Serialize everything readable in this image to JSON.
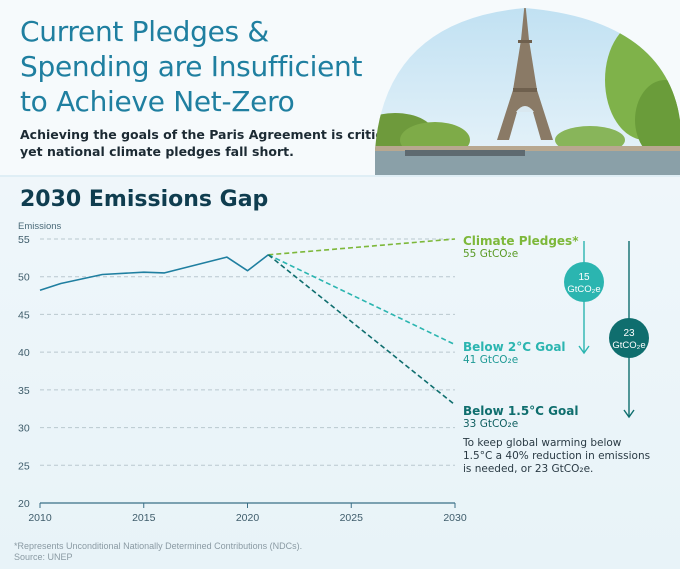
{
  "header": {
    "title_lines": [
      "Current Pledges &",
      "Spending are Insufficient",
      "to Achieve Net-Zero"
    ],
    "subtitle_lines": [
      "Achieving the goals of the Paris Agreement is critical,",
      "yet national climate pledges fall short."
    ]
  },
  "colors": {
    "title": "#1f7fa0",
    "actual_line": "#1f7fa0",
    "pledges": "#7db83a",
    "below2": "#2bb5b0",
    "below15": "#0f6e6e",
    "grid": "#b9c8cf"
  },
  "chart_data": {
    "type": "line",
    "title": "2030 Emissions Gap",
    "ylabel": "Emissions",
    "xlabel": "",
    "ylim": [
      20,
      55
    ],
    "xlim": [
      2010,
      2030
    ],
    "yticks": [
      "55",
      "50",
      "45",
      "40",
      "35",
      "30",
      "25",
      "20"
    ],
    "xticks": [
      "2010",
      "2015",
      "2020",
      "2025",
      "2030"
    ],
    "grid": "horizontal dashed",
    "series": [
      {
        "style": "solid",
        "x": [
          2010,
          2011,
          2013,
          2015,
          2016,
          2019,
          2020,
          2021
        ],
        "y": [
          48.2,
          49.1,
          50.3,
          50.6,
          50.5,
          52.6,
          50.8,
          52.9
        ]
      },
      {
        "name": "Climate Pledges*",
        "style": "dashed",
        "x": [
          2021,
          2030
        ],
        "y": [
          52.9,
          55
        ]
      },
      {
        "name": "Below 2°C Goal",
        "style": "dashed",
        "x": [
          2021,
          2030
        ],
        "y": [
          52.9,
          41
        ]
      },
      {
        "name": "Below 1.5°C Goal",
        "style": "dashed",
        "x": [
          2021,
          2030
        ],
        "y": [
          52.9,
          33
        ]
      }
    ],
    "annotations": {
      "pledges": {
        "name": "Climate Pledges*",
        "value": "55 GtCO₂e"
      },
      "below2": {
        "name": "Below 2°C Goal",
        "value": "41 GtCO₂e"
      },
      "below15": {
        "name": "Below 1.5°C Goal",
        "value": "33 GtCO₂e"
      },
      "gap_small": {
        "value": "15",
        "unit": "GtCO₂e"
      },
      "gap_large": {
        "value": "23",
        "unit": "GtCO₂e"
      },
      "note_lines": [
        "To keep global warming below",
        "1.5°C a 40% reduction in emissions",
        "is needed, or 23 GtCO₂e."
      ]
    }
  },
  "footnote": {
    "lines": [
      "*Represents Unconditional Nationally Determined Contributions (NDCs).",
      "Source: UNEP"
    ]
  }
}
